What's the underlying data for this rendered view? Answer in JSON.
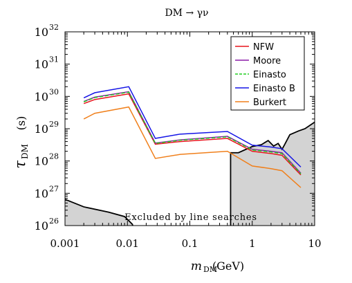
{
  "chart_data": {
    "type": "line",
    "title": "DM → γν",
    "xlabel": "m",
    "xlabel_sub": "DM",
    "xlabel_unit": "(GeV)",
    "ylabel": "τ",
    "ylabel_sub": "DM",
    "ylabel_unit": "(s)",
    "xscale": "log",
    "yscale": "log",
    "xlim": [
      0.001,
      10
    ],
    "ylim": [
      1e+26,
      1e+32
    ],
    "x_ticks": [
      {
        "value": 0.001,
        "label": "0.001"
      },
      {
        "value": 0.01,
        "label": "0.01"
      },
      {
        "value": 0.1,
        "label": "0.1"
      },
      {
        "value": 1,
        "label": "1"
      },
      {
        "value": 10,
        "label": "10"
      }
    ],
    "y_ticks": [
      {
        "value": 1e+26,
        "base": "10",
        "exp": "26"
      },
      {
        "value": 1e+27,
        "base": "10",
        "exp": "27"
      },
      {
        "value": 1e+28,
        "base": "10",
        "exp": "28"
      },
      {
        "value": 1e+29,
        "base": "10",
        "exp": "29"
      },
      {
        "value": 1e+30,
        "base": "10",
        "exp": "30"
      },
      {
        "value": 1e+31,
        "base": "10",
        "exp": "31"
      },
      {
        "value": 1e+32,
        "base": "10",
        "exp": "32"
      }
    ],
    "legend_position": "top-right",
    "series": [
      {
        "name": "NFW",
        "color": "#e8141c",
        "x": [
          0.002,
          0.003,
          0.0105,
          0.028,
          0.07,
          0.4,
          1.0,
          2.0,
          3.0,
          6.0
        ],
        "y": [
          6e+29,
          8e+29,
          1.2e+30,
          3.3e+28,
          4e+28,
          5e+28,
          2e+28,
          1.7e+28,
          1.5e+28,
          3.7e+27
        ]
      },
      {
        "name": "Moore",
        "color": "#8b1aa8",
        "x": [
          0.002,
          0.003,
          0.0105,
          0.028,
          0.07,
          0.4,
          1.0,
          2.0,
          3.0,
          6.0
        ],
        "y": [
          7e+29,
          9.5e+29,
          1.4e+30,
          3.6e+28,
          4.5e+28,
          5.8e+28,
          2.3e+28,
          2e+28,
          1.8e+28,
          4.2e+27
        ]
      },
      {
        "name": "Einasto",
        "color": "#1ecd1e",
        "x": [
          0.002,
          0.003,
          0.0105,
          0.028,
          0.07,
          0.4,
          1.0,
          2.0,
          3.0,
          6.0
        ],
        "y": [
          6.8e+29,
          9.2e+29,
          1.35e+30,
          3.5e+28,
          4.4e+28,
          5.6e+28,
          2.2e+28,
          1.9e+28,
          1.7e+28,
          4e+27
        ]
      },
      {
        "name": "Einasto B",
        "color": "#1414e6",
        "x": [
          0.002,
          0.003,
          0.0105,
          0.028,
          0.07,
          0.4,
          1.0,
          2.0,
          3.0,
          6.0
        ],
        "y": [
          9e+29,
          1.3e+30,
          2e+30,
          5e+28,
          6.8e+28,
          8.2e+28,
          3.1e+28,
          2.7e+28,
          2.4e+28,
          6.5e+27
        ]
      },
      {
        "name": "Burkert",
        "color": "#f07f1a",
        "x": [
          0.002,
          0.003,
          0.0105,
          0.028,
          0.07,
          0.4,
          1.0,
          2.0,
          3.0,
          6.0
        ],
        "y": [
          2e+29,
          3e+29,
          4.7e+29,
          1.2e+28,
          1.6e+28,
          2e+28,
          7e+27,
          5.8e+27,
          5e+27,
          1.5e+27
        ]
      }
    ],
    "excluded_region": {
      "label": "Excluded by line searches",
      "color": "#d3d3d3",
      "boundary_x": [
        0.001,
        0.002,
        0.005,
        0.009,
        0.012,
        0.015,
        0.08,
        0.45,
        0.45,
        0.6,
        1.0,
        1.4,
        1.8,
        2.2,
        2.6,
        3.0,
        3.3,
        4.0,
        5.5,
        7.0,
        10.0
      ],
      "boundary_y": [
        6.5e+26,
        3.8e+26,
        2.6e+26,
        1.9e+26,
        1.1e+26,
        2.8e+25,
        1.8e+25,
        4.5e+25,
        1.8e+28,
        1.8e+28,
        2.8e+28,
        3.2e+28,
        4.3e+28,
        2.9e+28,
        3.5e+28,
        2.3e+28,
        3.2e+28,
        6.5e+28,
        8.5e+28,
        1e+29,
        1.6e+29
      ]
    }
  }
}
